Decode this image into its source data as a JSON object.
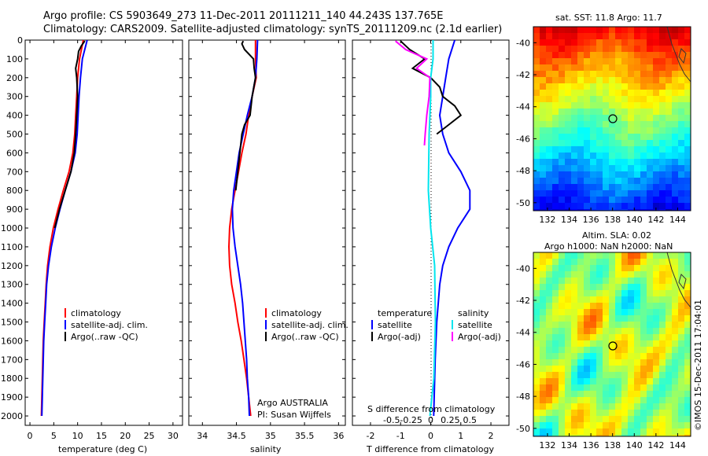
{
  "header": {
    "line1": "Argo profile: CS 5903649_273 11-Dec-2011 20111211_140 44.243S 137.765E",
    "line2": "Climatology: CARS2009. Satellite-adjusted climatology: synTS_20111209.nc (2.1d earlier)"
  },
  "colors": {
    "climatology": "#ff0000",
    "satellite": "#0000ff",
    "argo": "#000000",
    "sat_sal": "#00e5ee",
    "argo_sal": "#ff00ff"
  },
  "depth_axis": {
    "min": 0,
    "max": 2050,
    "ticks": [
      0,
      100,
      200,
      300,
      400,
      500,
      600,
      700,
      800,
      900,
      1000,
      1100,
      1200,
      1300,
      1400,
      1500,
      1600,
      1700,
      1800,
      1900,
      2000
    ]
  },
  "panels": {
    "temperature": {
      "xlabel": "temperature (deg C)",
      "xlim": [
        -1,
        32
      ],
      "xticks": [
        "0",
        "5",
        "10",
        "15",
        "20",
        "25",
        "30"
      ],
      "legend": [
        "climatology",
        "satellite-adj. clim.",
        "Argo(..raw -QC)"
      ]
    },
    "salinity": {
      "xlabel": "salinity",
      "xlim": [
        33.8,
        36.1
      ],
      "xticks": [
        "34",
        "34.5",
        "35",
        "35.5",
        "36"
      ],
      "legend": [
        "climatology",
        "satellite-adj. clim.",
        "Argo(..raw -QC)"
      ],
      "note1": "Argo AUSTRALIA",
      "note2": "PI: Susan Wijffels"
    },
    "difference": {
      "xlabel": "T difference from climatology",
      "xlabel2": "S difference from climatology",
      "xlim": [
        -2.6,
        2.6
      ],
      "xticks": [
        "-2",
        "-1",
        "0",
        "1",
        "2"
      ],
      "sticks": [
        "-0.5",
        "-0.25",
        "0",
        "0.25",
        "0.5"
      ],
      "legend_t_head": "temperature",
      "legend_s_head": "salinity",
      "legend_t": [
        "satellite",
        "Argo(-adj)"
      ],
      "legend_s": [
        "satellite",
        "Argo(-adj)"
      ]
    }
  },
  "maps": {
    "sst_title": "sat. SST: 11.8  Argo: 11.7",
    "sla_title1": "Altim. SLA: 0.02",
    "sla_title2": "Argo h1000: NaN h2000: NaN",
    "lat_ticks": [
      "-40",
      "-42",
      "-44",
      "-46",
      "-48",
      "-50"
    ],
    "lon_ticks": [
      "132",
      "134",
      "136",
      "138",
      "140",
      "142",
      "144"
    ],
    "credit": "©IMOS 15-Dec-2011 17:04:01"
  },
  "chart_data": {
    "type": "line",
    "y": "depth (dbar)",
    "temperature": {
      "climatology": [
        [
          0,
          11.2
        ],
        [
          100,
          10.4
        ],
        [
          200,
          10.0
        ],
        [
          300,
          9.8
        ],
        [
          400,
          9.6
        ],
        [
          500,
          9.4
        ],
        [
          600,
          9.0
        ],
        [
          700,
          8.2
        ],
        [
          800,
          7.0
        ],
        [
          900,
          5.9
        ],
        [
          1000,
          4.9
        ],
        [
          1100,
          4.2
        ],
        [
          1200,
          3.7
        ],
        [
          1300,
          3.4
        ],
        [
          1400,
          3.2
        ],
        [
          1500,
          3.0
        ],
        [
          1600,
          2.8
        ],
        [
          1700,
          2.7
        ],
        [
          1800,
          2.6
        ],
        [
          1900,
          2.5
        ],
        [
          2000,
          2.4
        ]
      ],
      "satellite": [
        [
          0,
          12.0
        ],
        [
          100,
          11.0
        ],
        [
          200,
          10.6
        ],
        [
          300,
          10.3
        ],
        [
          400,
          10.1
        ],
        [
          500,
          9.9
        ],
        [
          600,
          9.5
        ],
        [
          700,
          8.6
        ],
        [
          800,
          7.4
        ],
        [
          900,
          6.3
        ],
        [
          1000,
          5.3
        ],
        [
          1100,
          4.5
        ],
        [
          1200,
          3.9
        ],
        [
          1300,
          3.5
        ],
        [
          1400,
          3.3
        ],
        [
          1500,
          3.1
        ],
        [
          1600,
          2.9
        ],
        [
          1700,
          2.8
        ],
        [
          1800,
          2.7
        ],
        [
          1900,
          2.6
        ],
        [
          2000,
          2.5
        ]
      ],
      "argo": [
        [
          5,
          11.5
        ],
        [
          30,
          10.8
        ],
        [
          60,
          10.2
        ],
        [
          100,
          10.0
        ],
        [
          150,
          9.6
        ],
        [
          200,
          9.8
        ],
        [
          250,
          9.9
        ],
        [
          300,
          10.0
        ],
        [
          400,
          9.8
        ],
        [
          500,
          9.6
        ],
        [
          600,
          9.3
        ],
        [
          700,
          8.6
        ],
        [
          800,
          7.4
        ],
        [
          900,
          6.2
        ],
        [
          1000,
          5.2
        ]
      ]
    },
    "salinity": {
      "climatology": [
        [
          0,
          34.78
        ],
        [
          100,
          34.78
        ],
        [
          200,
          34.79
        ],
        [
          300,
          34.73
        ],
        [
          400,
          34.68
        ],
        [
          500,
          34.64
        ],
        [
          600,
          34.58
        ],
        [
          700,
          34.53
        ],
        [
          800,
          34.48
        ],
        [
          900,
          34.43
        ],
        [
          1000,
          34.4
        ],
        [
          1100,
          34.39
        ],
        [
          1200,
          34.4
        ],
        [
          1300,
          34.43
        ],
        [
          1400,
          34.48
        ],
        [
          1500,
          34.52
        ],
        [
          1600,
          34.57
        ],
        [
          1700,
          34.61
        ],
        [
          1800,
          34.65
        ],
        [
          1900,
          34.68
        ],
        [
          2000,
          34.71
        ]
      ],
      "satellite": [
        [
          0,
          34.81
        ],
        [
          100,
          34.8
        ],
        [
          200,
          34.78
        ],
        [
          300,
          34.73
        ],
        [
          400,
          34.66
        ],
        [
          500,
          34.6
        ],
        [
          600,
          34.54
        ],
        [
          700,
          34.5
        ],
        [
          800,
          34.46
        ],
        [
          900,
          34.44
        ],
        [
          1000,
          34.45
        ],
        [
          1100,
          34.48
        ],
        [
          1200,
          34.52
        ],
        [
          1300,
          34.56
        ],
        [
          1400,
          34.59
        ],
        [
          1500,
          34.61
        ],
        [
          1600,
          34.63
        ],
        [
          1700,
          34.65
        ],
        [
          1800,
          34.66
        ],
        [
          1900,
          34.68
        ],
        [
          2000,
          34.69
        ]
      ],
      "argo": [
        [
          5,
          34.6
        ],
        [
          20,
          34.58
        ],
        [
          50,
          34.62
        ],
        [
          100,
          34.75
        ],
        [
          150,
          34.76
        ],
        [
          200,
          34.78
        ],
        [
          300,
          34.73
        ],
        [
          400,
          34.7
        ],
        [
          450,
          34.62
        ],
        [
          500,
          34.58
        ],
        [
          600,
          34.55
        ],
        [
          700,
          34.52
        ],
        [
          800,
          34.49
        ]
      ]
    },
    "t_difference": {
      "satellite": [
        [
          0,
          0.8
        ],
        [
          100,
          0.6
        ],
        [
          200,
          0.5
        ],
        [
          300,
          0.4
        ],
        [
          400,
          0.3
        ],
        [
          500,
          0.4
        ],
        [
          600,
          0.6
        ],
        [
          700,
          1.0
        ],
        [
          800,
          1.3
        ],
        [
          900,
          1.3
        ],
        [
          1000,
          0.9
        ],
        [
          1100,
          0.6
        ],
        [
          1200,
          0.4
        ],
        [
          1300,
          0.3
        ],
        [
          1500,
          0.2
        ],
        [
          1700,
          0.15
        ],
        [
          2000,
          0.1
        ]
      ],
      "argo": [
        [
          5,
          -1.0
        ],
        [
          50,
          -0.7
        ],
        [
          100,
          -0.2
        ],
        [
          150,
          -0.6
        ],
        [
          200,
          0.0
        ],
        [
          250,
          0.3
        ],
        [
          300,
          0.4
        ],
        [
          350,
          0.8
        ],
        [
          400,
          1.0
        ],
        [
          450,
          0.6
        ],
        [
          500,
          0.2
        ]
      ]
    },
    "s_difference": {
      "satellite": [
        [
          0,
          0.03
        ],
        [
          100,
          0.03
        ],
        [
          200,
          0.0
        ],
        [
          300,
          0.0
        ],
        [
          500,
          -0.02
        ],
        [
          800,
          -0.03
        ],
        [
          1000,
          0.0
        ],
        [
          1200,
          0.05
        ],
        [
          1500,
          0.06
        ],
        [
          1800,
          0.04
        ],
        [
          2000,
          -0.01
        ]
      ],
      "argo": [
        [
          5,
          -0.45
        ],
        [
          50,
          -0.32
        ],
        [
          100,
          -0.05
        ],
        [
          150,
          -0.18
        ],
        [
          200,
          -0.01
        ],
        [
          300,
          -0.02
        ],
        [
          400,
          -0.05
        ],
        [
          500,
          -0.07
        ],
        [
          560,
          -0.08
        ]
      ]
    }
  }
}
